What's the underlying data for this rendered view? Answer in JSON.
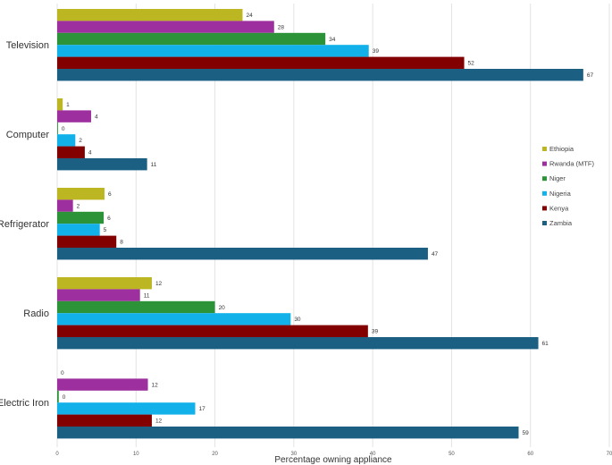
{
  "chart_data": {
    "type": "bar",
    "orientation": "horizontal",
    "title": "",
    "xlabel": "Percentage owning appliance",
    "ylabel": "",
    "xlim": [
      0,
      70
    ],
    "xticks": [
      0,
      10,
      20,
      30,
      40,
      50,
      60,
      70
    ],
    "grid": true,
    "legend_position": "right",
    "categories": [
      "Television",
      "Computer",
      "Refrigerator",
      "Radio",
      "Electric Iron"
    ],
    "series": [
      {
        "name": "Ethiopia",
        "color": "#bcb623",
        "values": [
          24,
          1,
          6,
          12,
          0
        ],
        "plot_values": [
          23.5,
          0.7,
          6,
          12,
          0
        ]
      },
      {
        "name": "Rwanda (MTF)",
        "color": "#9e2f9e",
        "values": [
          28,
          4,
          2,
          11,
          12
        ],
        "plot_values": [
          27.5,
          4.3,
          2,
          10.5,
          11.5
        ]
      },
      {
        "name": "Niger",
        "color": "#2c9338",
        "values": [
          34,
          0,
          6,
          20,
          0
        ],
        "plot_values": [
          34,
          0.1,
          5.9,
          20,
          0.2
        ]
      },
      {
        "name": "Nigeria",
        "color": "#12b1ea",
        "values": [
          39,
          2,
          5,
          30,
          17
        ],
        "plot_values": [
          39.5,
          2.3,
          5.4,
          29.6,
          17.5
        ]
      },
      {
        "name": "Kenya",
        "color": "#820000",
        "values": [
          52,
          4,
          8,
          39,
          12
        ],
        "plot_values": [
          51.6,
          3.5,
          7.5,
          39.4,
          12
        ]
      },
      {
        "name": "Zambia",
        "color": "#1b6083",
        "values": [
          67,
          11,
          47,
          61,
          59
        ],
        "plot_values": [
          66.7,
          11.4,
          47,
          61,
          58.5
        ]
      }
    ]
  }
}
